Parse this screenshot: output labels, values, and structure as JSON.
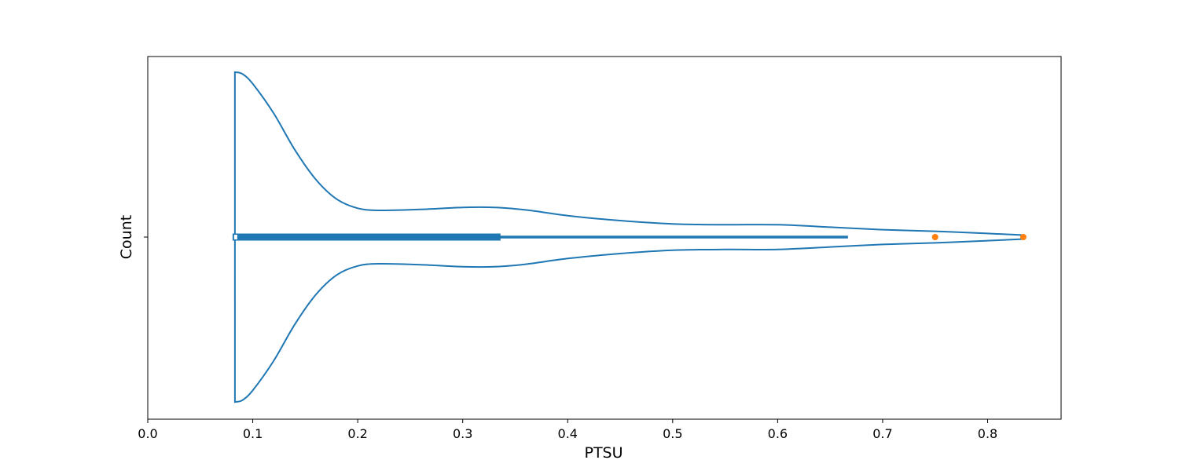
{
  "chart_data": {
    "type": "violin",
    "orientation": "horizontal",
    "xlabel": "PTSU",
    "ylabel": "Count",
    "xlim": [
      0.0,
      0.87
    ],
    "x_ticks": [
      {
        "value": 0.0,
        "label": "0.0"
      },
      {
        "value": 0.1,
        "label": "0.1"
      },
      {
        "value": 0.2,
        "label": "0.2"
      },
      {
        "value": 0.3,
        "label": "0.3"
      },
      {
        "value": 0.4,
        "label": "0.4"
      },
      {
        "value": 0.5,
        "label": "0.5"
      },
      {
        "value": 0.6,
        "label": "0.6"
      },
      {
        "value": 0.7,
        "label": "0.7"
      },
      {
        "value": 0.8,
        "label": "0.8"
      }
    ],
    "grid": false,
    "colors": {
      "violin": "#1f77b4",
      "box": "#1f77b4",
      "outliers": "#ff7f0e"
    },
    "density_profile": [
      {
        "x": 0.083,
        "w": 1.0
      },
      {
        "x": 0.09,
        "w": 0.99
      },
      {
        "x": 0.1,
        "w": 0.93
      },
      {
        "x": 0.12,
        "w": 0.75
      },
      {
        "x": 0.14,
        "w": 0.53
      },
      {
        "x": 0.16,
        "w": 0.35
      },
      {
        "x": 0.18,
        "w": 0.23
      },
      {
        "x": 0.2,
        "w": 0.175
      },
      {
        "x": 0.22,
        "w": 0.162
      },
      {
        "x": 0.26,
        "w": 0.168
      },
      {
        "x": 0.3,
        "w": 0.18
      },
      {
        "x": 0.33,
        "w": 0.18
      },
      {
        "x": 0.36,
        "w": 0.165
      },
      {
        "x": 0.4,
        "w": 0.13
      },
      {
        "x": 0.45,
        "w": 0.1
      },
      {
        "x": 0.5,
        "w": 0.08
      },
      {
        "x": 0.55,
        "w": 0.075
      },
      {
        "x": 0.6,
        "w": 0.075
      },
      {
        "x": 0.65,
        "w": 0.06
      },
      {
        "x": 0.7,
        "w": 0.045
      },
      {
        "x": 0.75,
        "w": 0.035
      },
      {
        "x": 0.8,
        "w": 0.022
      },
      {
        "x": 0.834,
        "w": 0.012
      }
    ],
    "box": {
      "whisker_low": 0.083,
      "q1": 0.083,
      "q3": 0.336,
      "whisker_high": 0.667
    },
    "outliers": [
      0.75,
      0.834
    ]
  }
}
